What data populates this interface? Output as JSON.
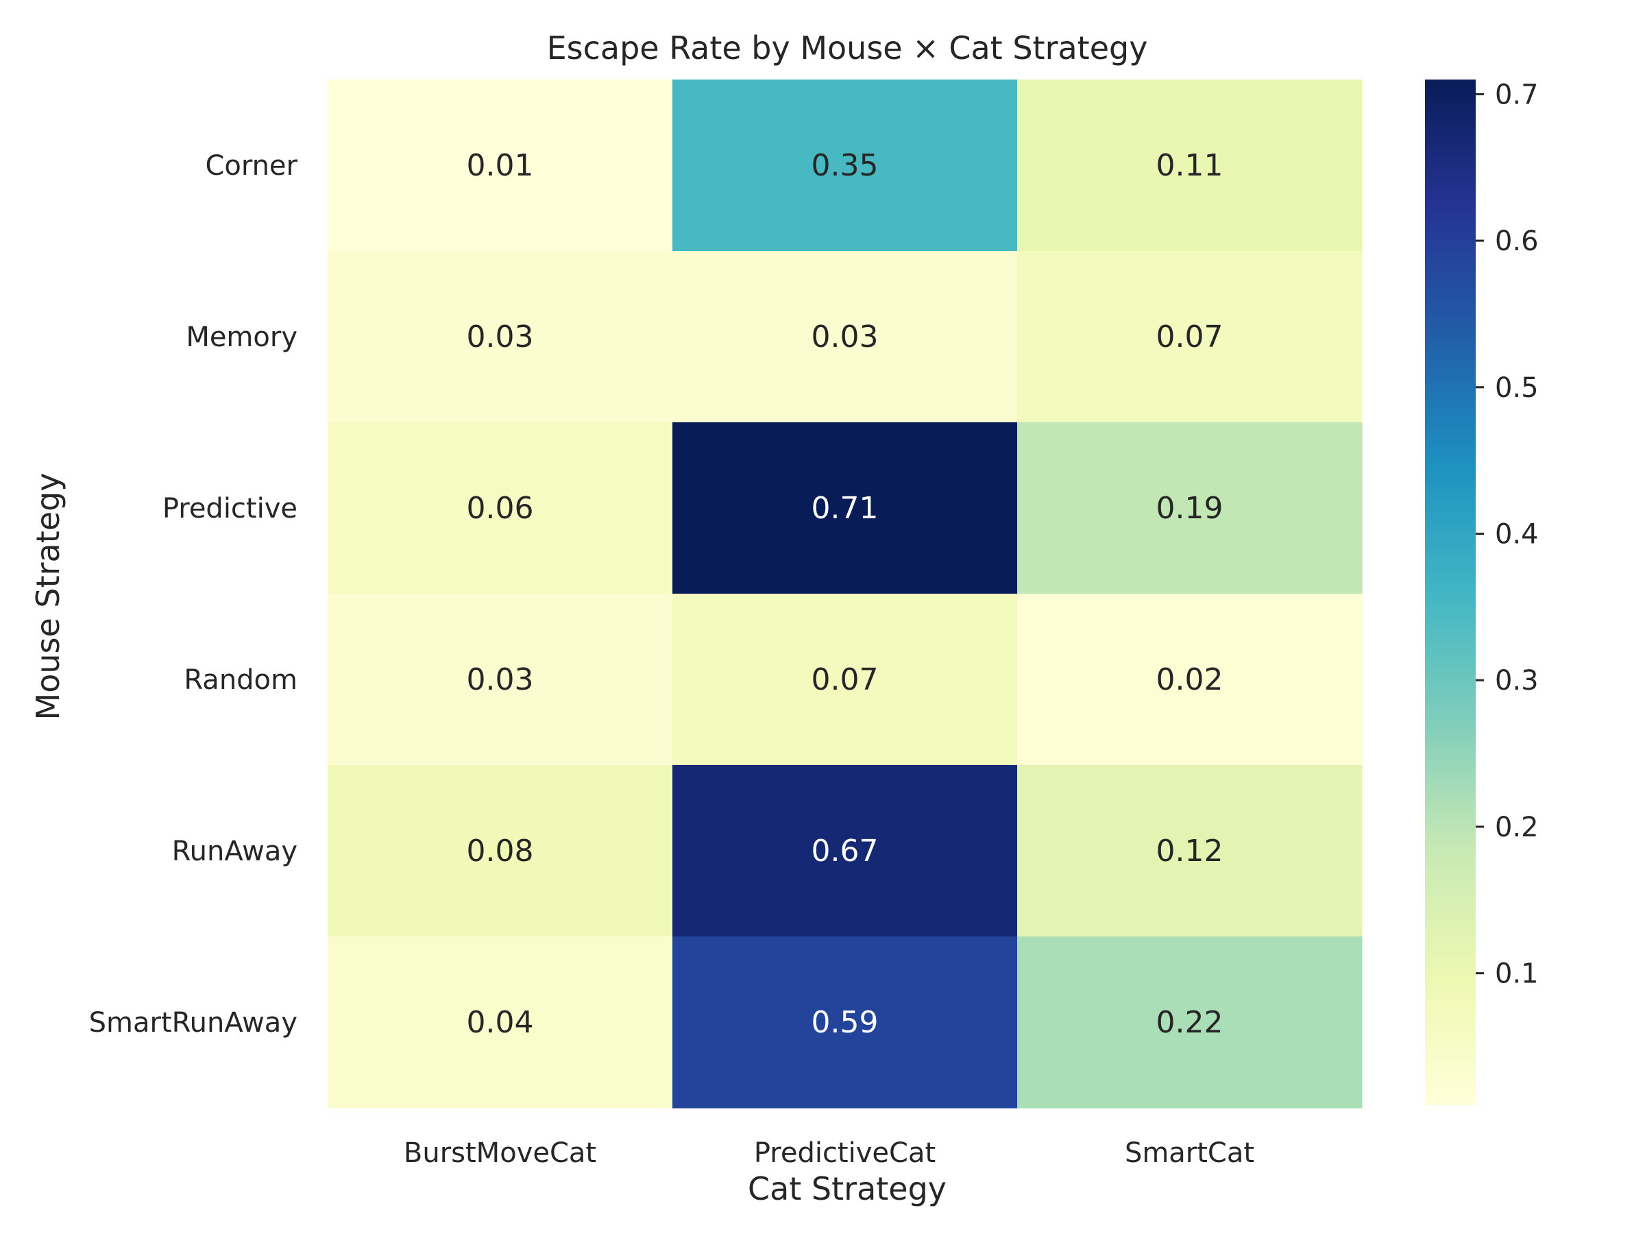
{
  "chart_data": {
    "type": "heatmap",
    "title": "Escape Rate by Mouse × Cat Strategy",
    "xlabel": "Cat Strategy",
    "ylabel": "Mouse Strategy",
    "x_categories": [
      "BurstMoveCat",
      "PredictiveCat",
      "SmartCat"
    ],
    "y_categories": [
      "Corner",
      "Memory",
      "Predictive",
      "Random",
      "RunAway",
      "SmartRunAway"
    ],
    "values": [
      [
        0.01,
        0.35,
        0.11
      ],
      [
        0.03,
        0.03,
        0.07
      ],
      [
        0.06,
        0.71,
        0.19
      ],
      [
        0.03,
        0.07,
        0.02
      ],
      [
        0.08,
        0.67,
        0.12
      ],
      [
        0.04,
        0.59,
        0.22
      ]
    ],
    "cell_labels": [
      [
        "0.01",
        "0.35",
        "0.11"
      ],
      [
        "0.03",
        "0.03",
        "0.07"
      ],
      [
        "0.06",
        "0.71",
        "0.19"
      ],
      [
        "0.03",
        "0.07",
        "0.02"
      ],
      [
        "0.08",
        "0.67",
        "0.12"
      ],
      [
        "0.04",
        "0.59",
        "0.22"
      ]
    ],
    "colormap": "YlGnBu",
    "color_range": [
      0.01,
      0.71
    ],
    "colorbar_ticks": [
      0.1,
      0.2,
      0.3,
      0.4,
      0.5,
      0.6,
      0.7
    ],
    "colorbar_tick_labels": [
      "0.1",
      "0.2",
      "0.3",
      "0.4",
      "0.5",
      "0.6",
      "0.7"
    ],
    "grid": false,
    "legend": "colorbar-right"
  }
}
